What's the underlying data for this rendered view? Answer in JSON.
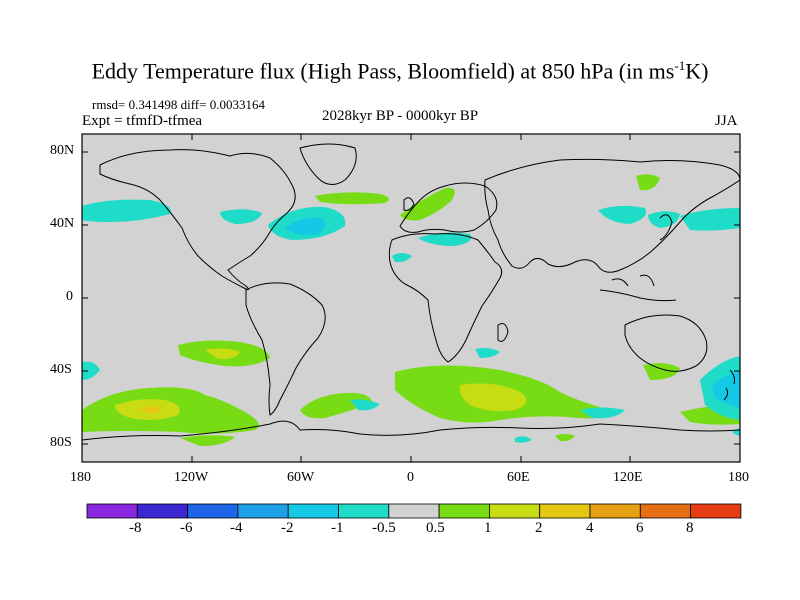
{
  "title": {
    "main": "Eddy Temperature flux (High Pass, Bloomfield) at 850 hPa (in ms",
    "sup": "-1",
    "end": "K)"
  },
  "stats": "rmsd= 0.341498 diff= 0.0033164",
  "expt": "Expt = tfmfD-tfmea",
  "period": "2028kyr BP - 0000kyr BP",
  "season": "JJA",
  "lat_labels": [
    "80N",
    "40N",
    "0",
    "40S",
    "80S"
  ],
  "lon_labels": [
    "180",
    "120W",
    "60W",
    "0",
    "60E",
    "120E",
    "180"
  ],
  "colorbar": {
    "labels": [
      "-8",
      "-6",
      "-4",
      "-2",
      "-1",
      "-0.5",
      "0.5",
      "1",
      "2",
      "4",
      "6",
      "8"
    ],
    "colors": [
      "#8a28e0",
      "#3c28d2",
      "#1e64e6",
      "#1ea0e6",
      "#14c8e6",
      "#1edcc8",
      "#d2d2d2",
      "#78dc14",
      "#c8dc14",
      "#e6c814",
      "#e6a014",
      "#e66e14",
      "#e63c14"
    ]
  },
  "map_colors": {
    "land_bg": "#d2d2d2",
    "coast": "#000000"
  }
}
